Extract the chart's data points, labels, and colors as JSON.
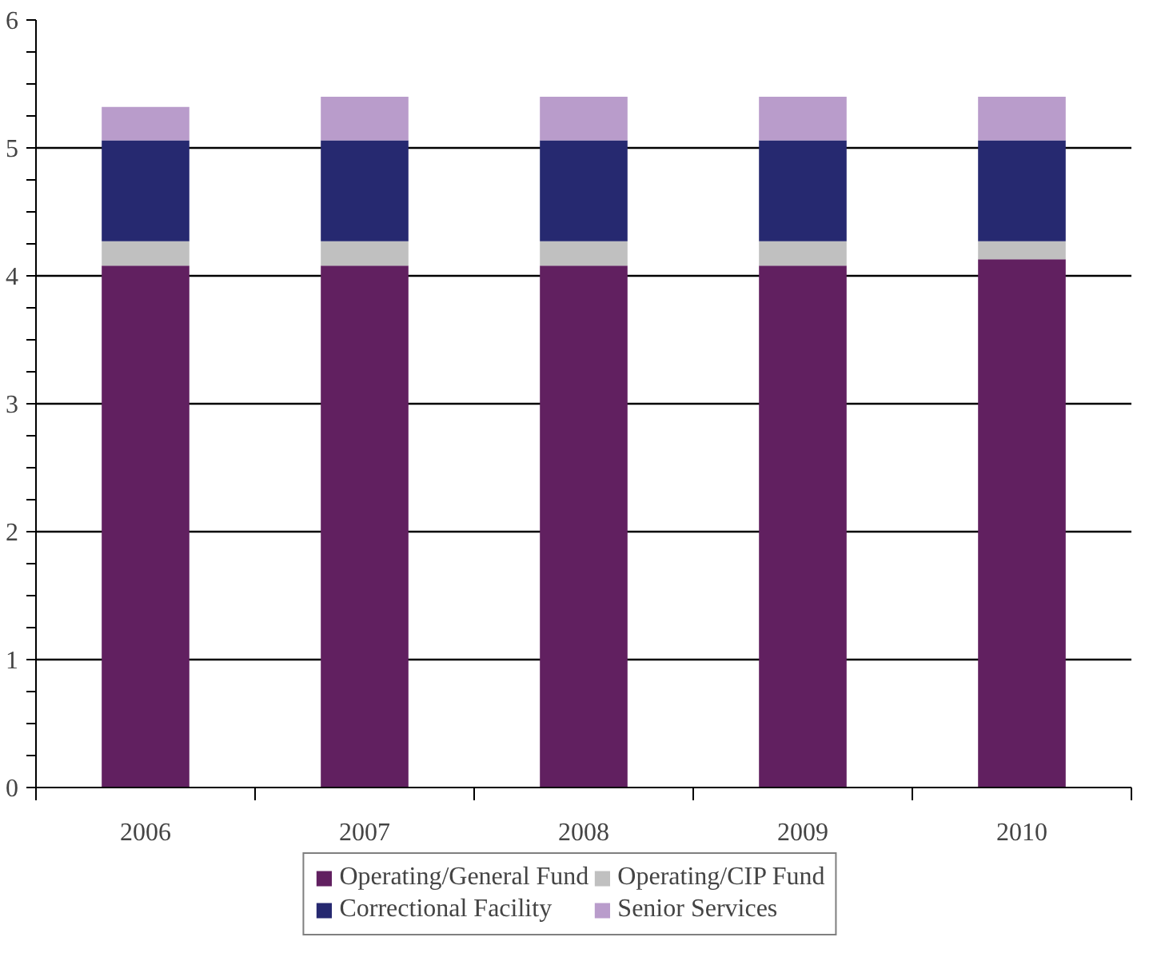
{
  "chart_data": {
    "type": "bar",
    "stacked": true,
    "categories": [
      "2006",
      "2007",
      "2008",
      "2009",
      "2010"
    ],
    "series": [
      {
        "name": "Operating/General Fund",
        "color": "#612060",
        "values": [
          4.08,
          4.08,
          4.08,
          4.08,
          4.13
        ]
      },
      {
        "name": "Operating/CIP Fund",
        "color": "#c0c0c0",
        "values": [
          0.19,
          0.19,
          0.19,
          0.19,
          0.14
        ]
      },
      {
        "name": "Correctional Facility",
        "color": "#262970",
        "values": [
          0.79,
          0.79,
          0.79,
          0.79,
          0.79
        ]
      },
      {
        "name": "Senior Services",
        "color": "#b99ccb",
        "values": [
          0.26,
          0.34,
          0.34,
          0.34,
          0.34
        ]
      }
    ],
    "ylim": [
      0,
      6
    ],
    "yticks": [
      0,
      {
        "value": 0.25,
        "label": null
      },
      {
        "value": 0.5,
        "label": null
      },
      {
        "value": 0.75,
        "label": null
      },
      1,
      {
        "value": 1.25,
        "label": null
      },
      {
        "value": 1.5,
        "label": null
      },
      {
        "value": 1.75,
        "label": null
      },
      2,
      {
        "value": 2.25,
        "label": null
      },
      {
        "value": 2.5,
        "label": null
      },
      {
        "value": 2.75,
        "label": null
      },
      3,
      {
        "value": 3.25,
        "label": null
      },
      {
        "value": 3.5,
        "label": null
      },
      {
        "value": 3.75,
        "label": null
      },
      4,
      {
        "value": 4.25,
        "label": null
      },
      {
        "value": 4.5,
        "label": null
      },
      {
        "value": 4.75,
        "label": null
      },
      5,
      {
        "value": 5.25,
        "label": null
      },
      {
        "value": 5.5,
        "label": null
      },
      {
        "value": 5.75,
        "label": null
      },
      6
    ],
    "grid": "y",
    "legend": "bottom"
  }
}
